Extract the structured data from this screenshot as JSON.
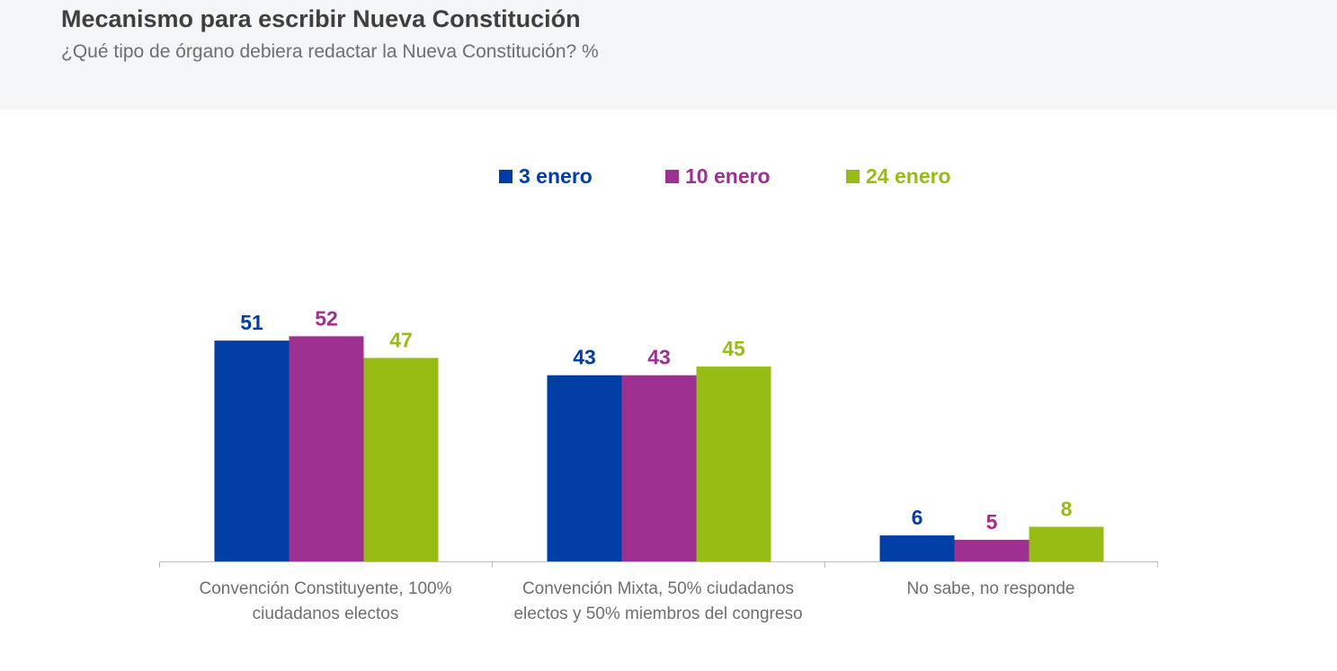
{
  "header": {
    "title": "Mecanismo para escribir Nueva Constitución",
    "subtitle": "¿Qué tipo de órgano debiera redactar la Nueva Constitución? %"
  },
  "chart_data": {
    "type": "bar",
    "title": "Mecanismo para escribir Nueva Constitución",
    "subtitle": "¿Qué tipo de órgano debiera redactar la Nueva Constitución? %",
    "xlabel": "",
    "ylabel": "",
    "ylim": [
      0,
      60
    ],
    "grid": false,
    "legend_position": "top-center",
    "categories": [
      [
        "Convención Constituyente, 100%",
        "ciudadanos electos"
      ],
      [
        "Convención Mixta, 50% ciudadanos",
        "electos y 50% miembros del congreso"
      ],
      [
        "No sabe, no responde"
      ]
    ],
    "series": [
      {
        "name": "3 enero",
        "color": "#003da5",
        "values": [
          51,
          43,
          6
        ]
      },
      {
        "name": "10 enero",
        "color": "#9d3090",
        "values": [
          52,
          43,
          5
        ]
      },
      {
        "name": "24 enero",
        "color": "#97bd14",
        "values": [
          47,
          45,
          8
        ]
      }
    ]
  }
}
